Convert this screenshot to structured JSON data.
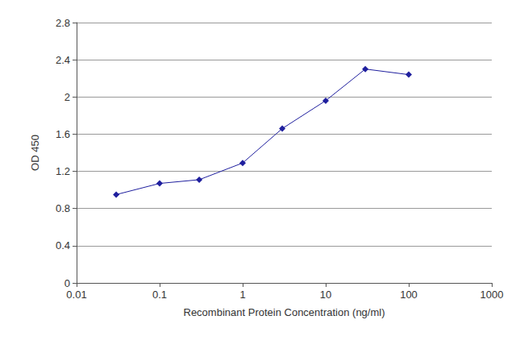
{
  "chart_data": {
    "type": "line",
    "x_label": "Recombinant Protein Concentration (ng/ml)",
    "y_label": "OD 450",
    "x": [
      0.03,
      0.1,
      0.3,
      1,
      3,
      10,
      30,
      100
    ],
    "values": [
      0.95,
      1.07,
      1.11,
      1.29,
      1.66,
      1.96,
      2.3,
      2.24
    ],
    "color": "#1f1f9e",
    "marker": "diamond",
    "log": "x",
    "xlim": [
      0.01,
      1000
    ],
    "xticks": [
      0.01,
      0.1,
      1,
      10,
      100,
      1000
    ],
    "ylim": [
      0,
      2.8
    ],
    "yticks": [
      0,
      0.4,
      0.8,
      1.2,
      1.6,
      2,
      2.4,
      2.8
    ],
    "grid": true
  }
}
